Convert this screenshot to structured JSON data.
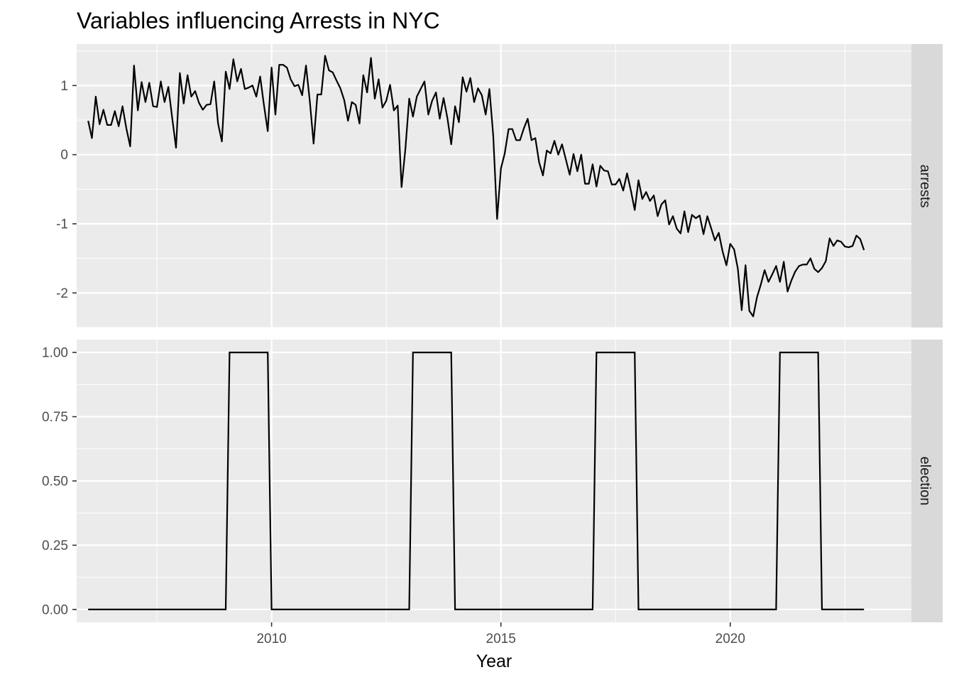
{
  "chart_data": {
    "type": "line",
    "title": "Variables influencing Arrests in NYC",
    "xlabel": "Year",
    "xlim": [
      2005.75,
      2023.95
    ],
    "x_ticks": [
      "2010",
      "2015",
      "2020"
    ],
    "grid": true,
    "facets": [
      {
        "strip_label": "arrests",
        "ylim": [
          -2.5,
          1.6
        ],
        "y_ticks": [
          "1",
          "0",
          "-1",
          "-2"
        ],
        "series": [
          {
            "x_start": 2006.0,
            "x_step": 0.0833333,
            "values": [
              0.49,
              0.24,
              0.84,
              0.44,
              0.65,
              0.43,
              0.43,
              0.63,
              0.41,
              0.7,
              0.38,
              0.12,
              1.29,
              0.64,
              1.05,
              0.76,
              1.04,
              0.7,
              0.69,
              1.06,
              0.76,
              0.98,
              0.53,
              0.1,
              1.18,
              0.74,
              1.15,
              0.84,
              0.92,
              0.75,
              0.65,
              0.72,
              0.73,
              1.06,
              0.45,
              0.19,
              1.2,
              0.95,
              1.38,
              1.06,
              1.24,
              0.95,
              0.97,
              1.0,
              0.84,
              1.13,
              0.72,
              0.34,
              1.26,
              0.58,
              1.3,
              1.3,
              1.26,
              1.09,
              0.99,
              1.01,
              0.86,
              1.29,
              0.77,
              0.16,
              0.87,
              0.87,
              1.43,
              1.22,
              1.19,
              1.07,
              0.96,
              0.79,
              0.49,
              0.76,
              0.72,
              0.45,
              1.15,
              0.9,
              1.4,
              0.81,
              1.09,
              0.68,
              0.78,
              1.01,
              0.64,
              0.71,
              -0.47,
              0.08,
              0.81,
              0.55,
              0.84,
              0.95,
              1.06,
              0.58,
              0.78,
              0.9,
              0.52,
              0.82,
              0.53,
              0.15,
              0.7,
              0.47,
              1.12,
              0.91,
              1.11,
              0.76,
              0.96,
              0.86,
              0.58,
              0.95,
              0.27,
              -0.93,
              -0.2,
              0.02,
              0.37,
              0.37,
              0.21,
              0.21,
              0.38,
              0.52,
              0.21,
              0.24,
              -0.11,
              -0.3,
              0.06,
              0.02,
              0.2,
              0.0,
              0.15,
              -0.07,
              -0.29,
              0.01,
              -0.24,
              0.0,
              -0.42,
              -0.42,
              -0.14,
              -0.46,
              -0.16,
              -0.23,
              -0.24,
              -0.43,
              -0.43,
              -0.35,
              -0.52,
              -0.27,
              -0.52,
              -0.8,
              -0.37,
              -0.64,
              -0.54,
              -0.67,
              -0.59,
              -0.89,
              -0.72,
              -0.66,
              -1.01,
              -0.89,
              -1.07,
              -1.14,
              -0.82,
              -1.12,
              -0.87,
              -0.92,
              -0.88,
              -1.15,
              -0.89,
              -1.06,
              -1.24,
              -1.13,
              -1.4,
              -1.6,
              -1.29,
              -1.37,
              -1.65,
              -2.25,
              -1.6,
              -2.26,
              -2.34,
              -2.06,
              -1.88,
              -1.67,
              -1.84,
              -1.73,
              -1.61,
              -1.84,
              -1.55,
              -1.98,
              -1.82,
              -1.69,
              -1.61,
              -1.59,
              -1.59,
              -1.5,
              -1.65,
              -1.7,
              -1.64,
              -1.54,
              -1.21,
              -1.32,
              -1.24,
              -1.26,
              -1.33,
              -1.34,
              -1.32,
              -1.17,
              -1.22,
              -1.38
            ]
          }
        ]
      },
      {
        "strip_label": "election",
        "ylim": [
          -0.05,
          1.05
        ],
        "y_ticks": [
          "1.00",
          "0.75",
          "0.50",
          "0.25",
          "0.00"
        ],
        "series": [
          {
            "x": [
              2006.0,
              2009.0,
              2009.0833,
              2009.9167,
              2010.0,
              2013.0,
              2013.0833,
              2013.9167,
              2014.0,
              2017.0,
              2017.0833,
              2017.9167,
              2018.0,
              2021.0,
              2021.0833,
              2021.9167,
              2022.0,
              2022.9167
            ],
            "y": [
              0,
              0,
              1,
              1,
              0,
              0,
              1,
              1,
              0,
              0,
              1,
              1,
              0,
              0,
              1,
              1,
              0,
              0
            ]
          }
        ]
      }
    ]
  }
}
